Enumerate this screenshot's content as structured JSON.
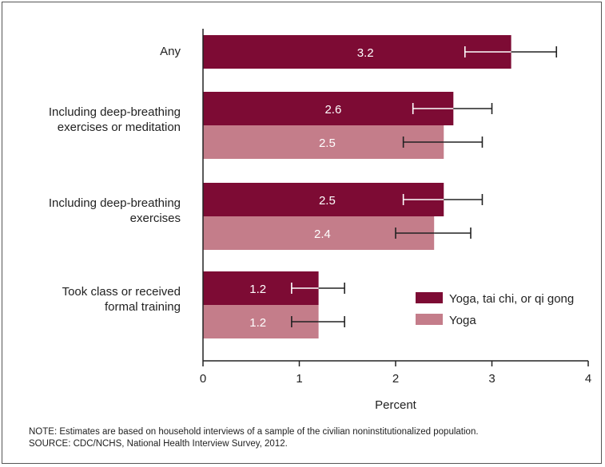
{
  "chart_data": {
    "type": "bar",
    "orientation": "horizontal",
    "categories": [
      [
        "Any"
      ],
      [
        "Including deep-breathing",
        "exercises or meditation"
      ],
      [
        "Including deep-breathing",
        "exercises"
      ],
      [
        "Took class or received",
        "formal training"
      ]
    ],
    "series": [
      {
        "name": "Yoga, tai chi, or qi gong",
        "color": "#7d0b34",
        "values": [
          3.2,
          2.6,
          2.5,
          1.2
        ],
        "labels": [
          "3.2",
          "2.6",
          "2.5",
          "1.2"
        ],
        "error_low": [
          2.72,
          2.18,
          2.08,
          0.92
        ],
        "error_high": [
          3.67,
          3.0,
          2.9,
          1.47
        ]
      },
      {
        "name": "Yoga",
        "color": "#c47d8a",
        "values": [
          null,
          2.5,
          2.4,
          1.2
        ],
        "labels": [
          "",
          "2.5",
          "2.4",
          "1.2"
        ],
        "error_low": [
          null,
          2.08,
          2.0,
          0.92
        ],
        "error_high": [
          null,
          2.9,
          2.78,
          1.47
        ]
      }
    ],
    "xlabel": "Percent",
    "xlim": [
      0,
      4
    ],
    "xticks": [
      "0",
      "1",
      "2",
      "3",
      "4"
    ],
    "legend_position": "bottom-right",
    "grid": false
  },
  "footnote": {
    "note": "NOTE: Estimates are based on household interviews of a sample of the civilian noninstitutionalized population.",
    "source": "SOURCE: CDC/NCHS, National Health Interview Survey, 2012."
  }
}
